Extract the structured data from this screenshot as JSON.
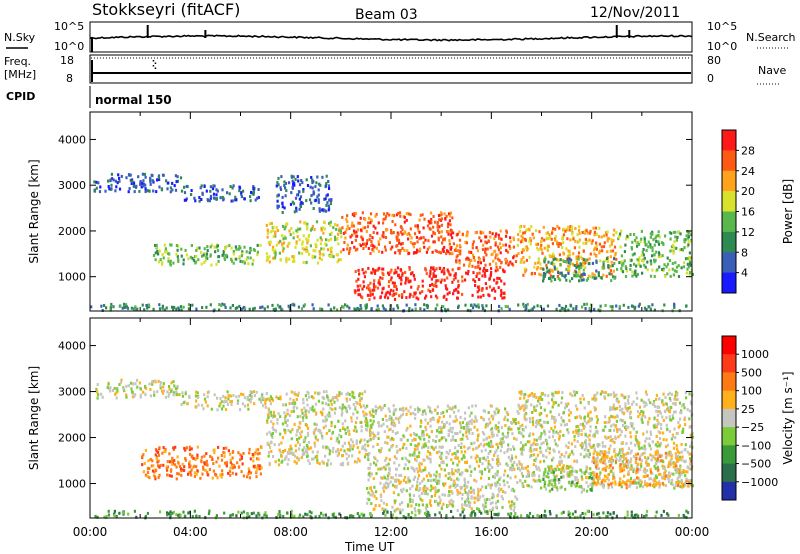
{
  "header": {
    "title": "Stokkseyri (fitACF)",
    "beam": "Beam 03",
    "date": "12/Nov/2011"
  },
  "panel_labels": {
    "nsky": "N.Sky",
    "nsky_ticks": [
      "10^5",
      "10^0"
    ],
    "nsearch": "N.Search",
    "nsearch_ticks": [
      "10^5",
      "10^0"
    ],
    "freq_label_1": "Freq.",
    "freq_label_2": "[MHz]",
    "freq_ticks": [
      "18",
      "8"
    ],
    "nave": "Nave",
    "nave_ticks": [
      "80",
      "0"
    ],
    "cpid": "CPID",
    "cpid_value": "normal 150"
  },
  "chart_data": [
    {
      "type": "heatmap",
      "name": "power",
      "ylabel": "Slant Range [km]",
      "ylim": [
        250,
        4600
      ],
      "yticks": [
        1000,
        2000,
        3000,
        4000
      ],
      "xlim_hours": [
        0,
        24
      ],
      "colorbar": {
        "label": "Power [dB]",
        "ticks": [
          "4",
          "8",
          "12",
          "16",
          "20",
          "24",
          "28"
        ],
        "colors": [
          "#1a1aff",
          "#3a5fb8",
          "#2f8a52",
          "#59b84c",
          "#d8e22e",
          "#ffa21c",
          "#ff5a14",
          "#ff1a1a"
        ]
      },
      "regions": [
        {
          "t0": 2.5,
          "t1": 6.8,
          "r0": 1250,
          "r1": 1700,
          "level": 3
        },
        {
          "t0": 0.1,
          "t1": 3.6,
          "r0": 2850,
          "r1": 3250,
          "level": 1
        },
        {
          "t0": 3.6,
          "t1": 6.8,
          "r0": 2650,
          "r1": 3000,
          "level": 1
        },
        {
          "t0": 7.4,
          "t1": 9.6,
          "r0": 2400,
          "r1": 3200,
          "level": 1
        },
        {
          "t0": 7.0,
          "t1": 10.0,
          "r0": 1300,
          "r1": 2200,
          "level": 4
        },
        {
          "t0": 10.0,
          "t1": 14.5,
          "r0": 1500,
          "r1": 2400,
          "level": 6
        },
        {
          "t0": 10.5,
          "t1": 16.5,
          "r0": 500,
          "r1": 1200,
          "level": 7
        },
        {
          "t0": 14.5,
          "t1": 17.0,
          "r0": 1200,
          "r1": 2000,
          "level": 6
        },
        {
          "t0": 17.0,
          "t1": 21.0,
          "r0": 1000,
          "r1": 2100,
          "level": 5
        },
        {
          "t0": 21.0,
          "t1": 24.0,
          "r0": 1000,
          "r1": 2000,
          "level": 3
        },
        {
          "t0": 18.0,
          "t1": 21.0,
          "r0": 900,
          "r1": 1400,
          "level": 2
        },
        {
          "t0": 0.0,
          "t1": 24.0,
          "r0": 250,
          "r1": 400,
          "level": 2
        }
      ]
    },
    {
      "type": "heatmap",
      "name": "velocity",
      "ylabel": "Slant Range [km]",
      "ylim": [
        250,
        4600
      ],
      "yticks": [
        1000,
        2000,
        3000,
        4000
      ],
      "xlim_hours": [
        0,
        24
      ],
      "xticks": [
        "00:00",
        "04:00",
        "08:00",
        "12:00",
        "16:00",
        "20:00",
        "00:00"
      ],
      "xlabel": "Time UT",
      "colorbar": {
        "label": "Velocity [m s⁻¹]",
        "ticks": [
          "1000",
          "500",
          "100",
          "25",
          "−25",
          "−100",
          "−500",
          "−1000"
        ],
        "colors": [
          "#2230a8",
          "#2a6e4a",
          "#3a9a3a",
          "#7ccc3a",
          "#c6c6c0",
          "#ffb01a",
          "#ff7a14",
          "#ff3a1a",
          "#ff0000"
        ]
      },
      "regions": [
        {
          "t0": 0.2,
          "t1": 3.6,
          "r0": 2850,
          "r1": 3250,
          "level": 4
        },
        {
          "t0": 3.6,
          "t1": 7.0,
          "r0": 2600,
          "r1": 3000,
          "level": 4
        },
        {
          "t0": 7.0,
          "t1": 11.0,
          "r0": 1400,
          "r1": 3000,
          "level": 4
        },
        {
          "t0": 11.0,
          "t1": 17.0,
          "r0": 400,
          "r1": 2700,
          "level": 4
        },
        {
          "t0": 17.0,
          "t1": 24.0,
          "r0": 900,
          "r1": 3000,
          "level": 4
        },
        {
          "t0": 2.0,
          "t1": 6.8,
          "r0": 1100,
          "r1": 1800,
          "level": 6
        },
        {
          "t0": 20.0,
          "t1": 24.0,
          "r0": 900,
          "r1": 1700,
          "level": 5
        },
        {
          "t0": 18.0,
          "t1": 20.0,
          "r0": 800,
          "r1": 1300,
          "level": 3
        },
        {
          "t0": 0.0,
          "t1": 24.0,
          "r0": 250,
          "r1": 400,
          "level": 2
        }
      ]
    }
  ],
  "summary_curves": {
    "nsky_spikes_hours": [
      2.3,
      4.6,
      21.0,
      21.5
    ],
    "freq_level_mhz": 10,
    "nave_level": 0
  }
}
